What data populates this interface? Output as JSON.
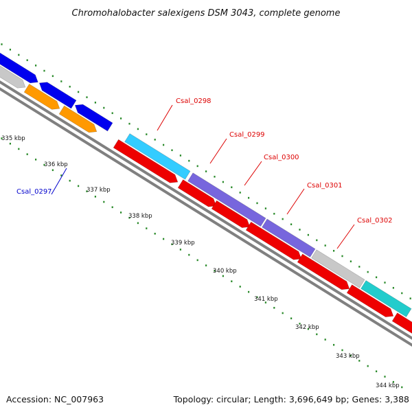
{
  "title": "Chromohalobacter salexigens DSM 3043, complete genome",
  "footer": {
    "accession": "Accession: NC_007963",
    "summary": "Topology: circular; Length: 3,696,649 bp; Genes: 3,388"
  },
  "kbp_labels": [
    "335 kbp",
    "336 kbp",
    "337 kbp",
    "338 kbp",
    "339 kbp",
    "340 kbp",
    "341 kbp",
    "342 kbp",
    "343 kbp",
    "344 kbp"
  ],
  "gene_labels": [
    {
      "name": "Csal_0297",
      "color": "#0000cc"
    },
    {
      "name": "Csal_0298",
      "color": "#dd0000"
    },
    {
      "name": "Csal_0299",
      "color": "#dd0000"
    },
    {
      "name": "Csal_0300",
      "color": "#dd0000"
    },
    {
      "name": "Csal_0301",
      "color": "#dd0000"
    },
    {
      "name": "Csal_0302",
      "color": "#dd0000"
    }
  ],
  "colors": {
    "backbone": "#808080",
    "forward_blue": "#0000ee",
    "orange": "#ff9900",
    "cyan": "#33ccff",
    "purple": "#7766dd",
    "red": "#ee0000",
    "gray_gene": "#c8c8c8",
    "teal": "#22cccc",
    "ticks": "#2a8a2a"
  }
}
